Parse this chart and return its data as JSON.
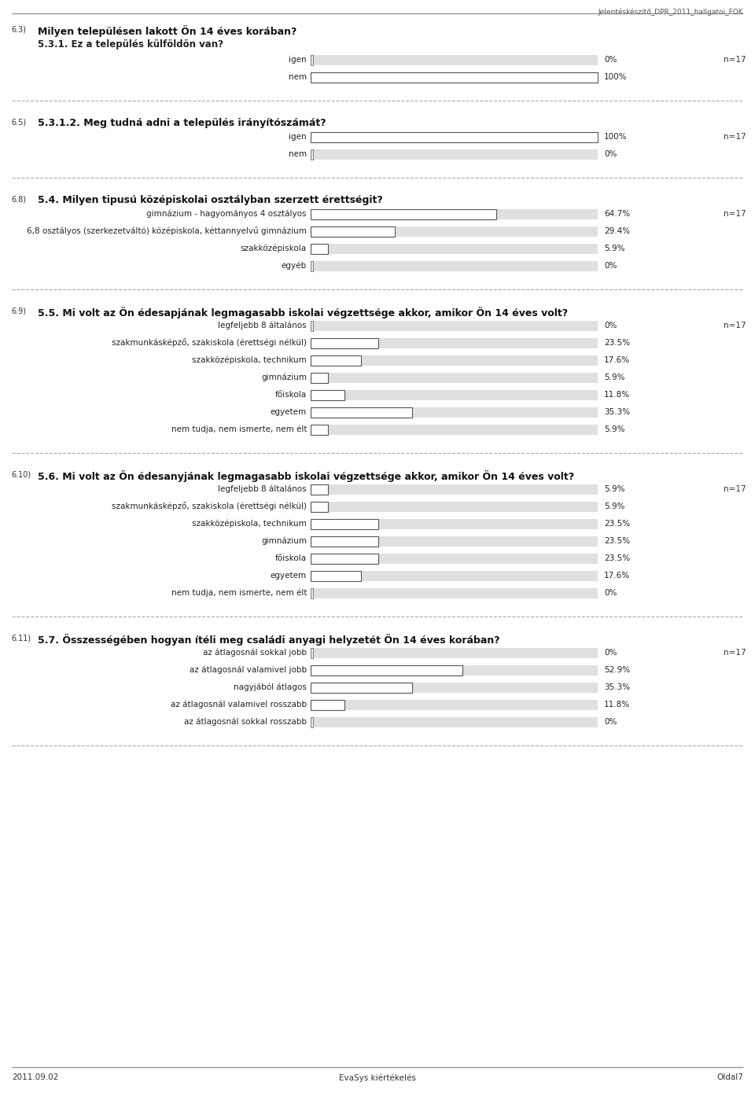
{
  "header_text": "Jelentéskészítő_DPR_2011_hallgatoi_FOK",
  "footer_left": "2011.09.02",
  "footer_center": "EvaSys kiértékelés",
  "footer_right": "Oldal7",
  "sections": [
    {
      "section_num": "6.3)",
      "title": "Milyen településen lakott Ön 14 éves korában?",
      "has_subtitle": true,
      "subtitle": "5.3.1. Ez a település külföldön van?",
      "n_label": "n=17",
      "bars": [
        {
          "label": "igen",
          "value": 0.0,
          "pct_text": "0%"
        },
        {
          "label": "nem",
          "value": 100.0,
          "pct_text": "100%"
        }
      ]
    },
    {
      "section_num": "6.5)",
      "title": "5.3.1.2. Meg tudná adni a település irányítószámát?",
      "has_subtitle": false,
      "subtitle": "",
      "n_label": "n=17",
      "bars": [
        {
          "label": "igen",
          "value": 100.0,
          "pct_text": "100%"
        },
        {
          "label": "nem",
          "value": 0.0,
          "pct_text": "0%"
        }
      ]
    },
    {
      "section_num": "6.8)",
      "title": "5.4. Milyen tipusú középiskolai osztályban szerzett érettségit?",
      "has_subtitle": false,
      "subtitle": "",
      "n_label": "n=17",
      "bars": [
        {
          "label": "gimnázium - hagyományos 4 osztályos",
          "value": 64.7,
          "pct_text": "64.7%"
        },
        {
          "label": "6,8 osztályos (szerkezetváltó) középiskola, kéttannyelvű gimnázium",
          "value": 29.4,
          "pct_text": "29.4%"
        },
        {
          "label": "szakközépiskola",
          "value": 5.9,
          "pct_text": "5.9%"
        },
        {
          "label": "egyéb",
          "value": 0.0,
          "pct_text": "0%"
        }
      ]
    },
    {
      "section_num": "6.9)",
      "title": "5.5. Mi volt az Ön édesapjának legmagasabb iskolai végzettsége akkor, amikor Ön 14 éves volt?",
      "has_subtitle": false,
      "subtitle": "",
      "n_label": "n=17",
      "bars": [
        {
          "label": "legfeljebb 8 általános",
          "value": 0.0,
          "pct_text": "0%"
        },
        {
          "label": "szakmunkásképző, szakiskola (érettségi nélkül)",
          "value": 23.5,
          "pct_text": "23.5%"
        },
        {
          "label": "szakközépiskola, technikum",
          "value": 17.6,
          "pct_text": "17.6%"
        },
        {
          "label": "gimnázium",
          "value": 5.9,
          "pct_text": "5.9%"
        },
        {
          "label": "főiskola",
          "value": 11.8,
          "pct_text": "11.8%"
        },
        {
          "label": "egyetem",
          "value": 35.3,
          "pct_text": "35.3%"
        },
        {
          "label": "nem tudja, nem ismerte, nem élt",
          "value": 5.9,
          "pct_text": "5.9%"
        }
      ]
    },
    {
      "section_num": "6.10)",
      "title": "5.6. Mi volt az Ön édesanyjának legmagasabb iskolai végzettsége akkor, amikor Ön 14 éves volt?",
      "has_subtitle": false,
      "subtitle": "",
      "n_label": "n=17",
      "bars": [
        {
          "label": "legfeljebb 8 általános",
          "value": 5.9,
          "pct_text": "5.9%"
        },
        {
          "label": "szakmunkásképző, szakiskola (érettségi nélkül)",
          "value": 5.9,
          "pct_text": "5.9%"
        },
        {
          "label": "szakközépiskola, technikum",
          "value": 23.5,
          "pct_text": "23.5%"
        },
        {
          "label": "gimnázium",
          "value": 23.5,
          "pct_text": "23.5%"
        },
        {
          "label": "főiskola",
          "value": 23.5,
          "pct_text": "23.5%"
        },
        {
          "label": "egyetem",
          "value": 17.6,
          "pct_text": "17.6%"
        },
        {
          "label": "nem tudja, nem ismerte, nem élt",
          "value": 0.0,
          "pct_text": "0%"
        }
      ]
    },
    {
      "section_num": "6.11)",
      "title": "5.7. Összességében hogyan ítéli meg családi anyagi helyzetét Ön 14 éves korában?",
      "has_subtitle": false,
      "subtitle": "",
      "n_label": "n=17",
      "bars": [
        {
          "label": "az átlagosnál sokkal jobb",
          "value": 0.0,
          "pct_text": "0%"
        },
        {
          "label": "az átlagosnál valamivel jobb",
          "value": 52.9,
          "pct_text": "52.9%"
        },
        {
          "label": "nagyjából átlagos",
          "value": 35.3,
          "pct_text": "35.3%"
        },
        {
          "label": "az átlagosnál valamivel rosszabb",
          "value": 11.8,
          "pct_text": "11.8%"
        },
        {
          "label": "az átlagosnál sokkal rosszabb",
          "value": 0.0,
          "pct_text": "0%"
        }
      ]
    }
  ]
}
